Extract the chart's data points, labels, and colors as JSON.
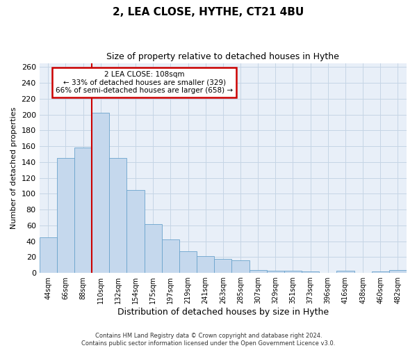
{
  "title": "2, LEA CLOSE, HYTHE, CT21 4BU",
  "subtitle": "Size of property relative to detached houses in Hythe",
  "xlabel": "Distribution of detached houses by size in Hythe",
  "ylabel": "Number of detached properties",
  "bar_labels": [
    "44sqm",
    "66sqm",
    "88sqm",
    "110sqm",
    "132sqm",
    "154sqm",
    "175sqm",
    "197sqm",
    "219sqm",
    "241sqm",
    "263sqm",
    "285sqm",
    "307sqm",
    "329sqm",
    "351sqm",
    "373sqm",
    "396sqm",
    "416sqm",
    "438sqm",
    "460sqm",
    "482sqm"
  ],
  "bar_values": [
    45,
    145,
    158,
    202,
    145,
    105,
    62,
    42,
    27,
    21,
    18,
    16,
    4,
    3,
    3,
    2,
    0,
    3,
    0,
    2,
    4
  ],
  "bar_color": "#c5d8ed",
  "bar_edge_color": "#6aa3cc",
  "annotation_text_line1": "2 LEA CLOSE: 108sqm",
  "annotation_text_line2": "← 33% of detached houses are smaller (329)",
  "annotation_text_line3": "66% of semi-detached houses are larger (658) →",
  "annotation_box_color": "#ffffff",
  "annotation_box_edge_color": "#cc0000",
  "red_line_color": "#cc0000",
  "grid_color": "#c5d5e5",
  "background_color": "#e8eff8",
  "footer_line1": "Contains HM Land Registry data © Crown copyright and database right 2024.",
  "footer_line2": "Contains public sector information licensed under the Open Government Licence v3.0.",
  "ylim": [
    0,
    265
  ],
  "yticks": [
    0,
    20,
    40,
    60,
    80,
    100,
    120,
    140,
    160,
    180,
    200,
    220,
    240,
    260
  ]
}
